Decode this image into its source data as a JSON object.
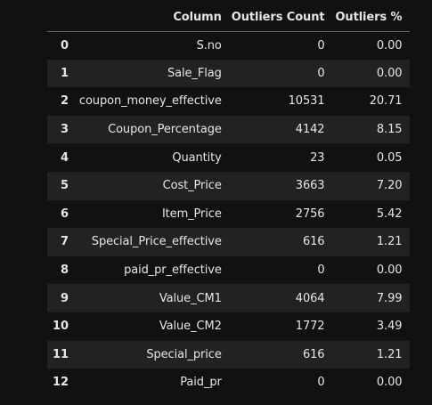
{
  "table": {
    "headers": [
      "",
      "Column",
      "Outliers Count",
      "Outliers %"
    ],
    "rows": [
      {
        "index": "0",
        "column": "S.no",
        "count": "0",
        "pct": "0.00"
      },
      {
        "index": "1",
        "column": "Sale_Flag",
        "count": "0",
        "pct": "0.00"
      },
      {
        "index": "2",
        "column": "coupon_money_effective",
        "count": "10531",
        "pct": "20.71"
      },
      {
        "index": "3",
        "column": "Coupon_Percentage",
        "count": "4142",
        "pct": "8.15"
      },
      {
        "index": "4",
        "column": "Quantity",
        "count": "23",
        "pct": "0.05"
      },
      {
        "index": "5",
        "column": "Cost_Price",
        "count": "3663",
        "pct": "7.20"
      },
      {
        "index": "6",
        "column": "Item_Price",
        "count": "2756",
        "pct": "5.42"
      },
      {
        "index": "7",
        "column": "Special_Price_effective",
        "count": "616",
        "pct": "1.21"
      },
      {
        "index": "8",
        "column": "paid_pr_effective",
        "count": "0",
        "pct": "0.00"
      },
      {
        "index": "9",
        "column": "Value_CM1",
        "count": "4064",
        "pct": "7.99"
      },
      {
        "index": "10",
        "column": "Value_CM2",
        "count": "1772",
        "pct": "3.49"
      },
      {
        "index": "11",
        "column": "Special_price",
        "count": "616",
        "pct": "1.21"
      },
      {
        "index": "12",
        "column": "Paid_pr",
        "count": "0",
        "pct": "0.00"
      }
    ]
  },
  "colors": {
    "background": "#111111",
    "stripe": "#222222",
    "text": "#e6e6e6",
    "header_rule": "#6a6a6a"
  }
}
